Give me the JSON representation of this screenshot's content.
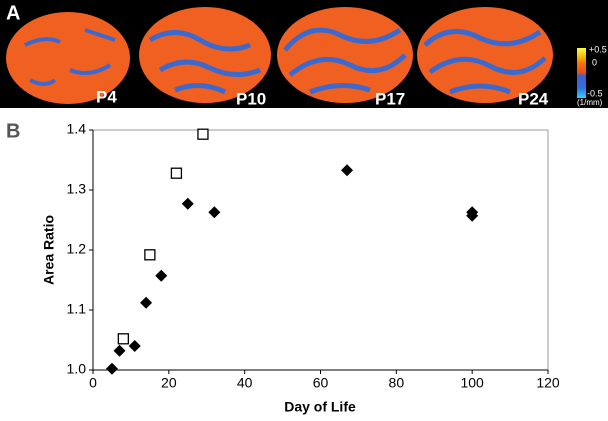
{
  "panel_a": {
    "label": "A",
    "images": [
      "P4",
      "P10",
      "P17",
      "P24"
    ],
    "colorbar": {
      "ticks": [
        "+0.5",
        "0",
        "-0.5"
      ],
      "unit": "(1/mm)"
    }
  },
  "chart_data": {
    "type": "scatter",
    "panel_label": "B",
    "xlabel": "Day of Life",
    "ylabel": "Area Ratio",
    "xlim": [
      0,
      120
    ],
    "xticks": [
      0,
      20,
      40,
      60,
      80,
      100,
      120
    ],
    "ylim": [
      1.0,
      1.4
    ],
    "yticks": [
      {
        "value": 1.0,
        "label": "1.0"
      },
      1.1,
      1.2,
      1.3,
      1.4
    ],
    "grid": false,
    "series": [
      {
        "marker": "diamond",
        "color": "#000000",
        "x": [
          5,
          7,
          11,
          14,
          18,
          25,
          32,
          67,
          100,
          100
        ],
        "values": [
          1.002,
          1.032,
          1.04,
          1.112,
          1.157,
          1.277,
          1.263,
          1.333,
          1.263,
          1.257
        ]
      },
      {
        "marker": "open-square",
        "color": "#000000",
        "x": [
          8,
          15,
          22,
          29
        ],
        "values": [
          1.052,
          1.192,
          1.328,
          1.393
        ]
      }
    ]
  }
}
